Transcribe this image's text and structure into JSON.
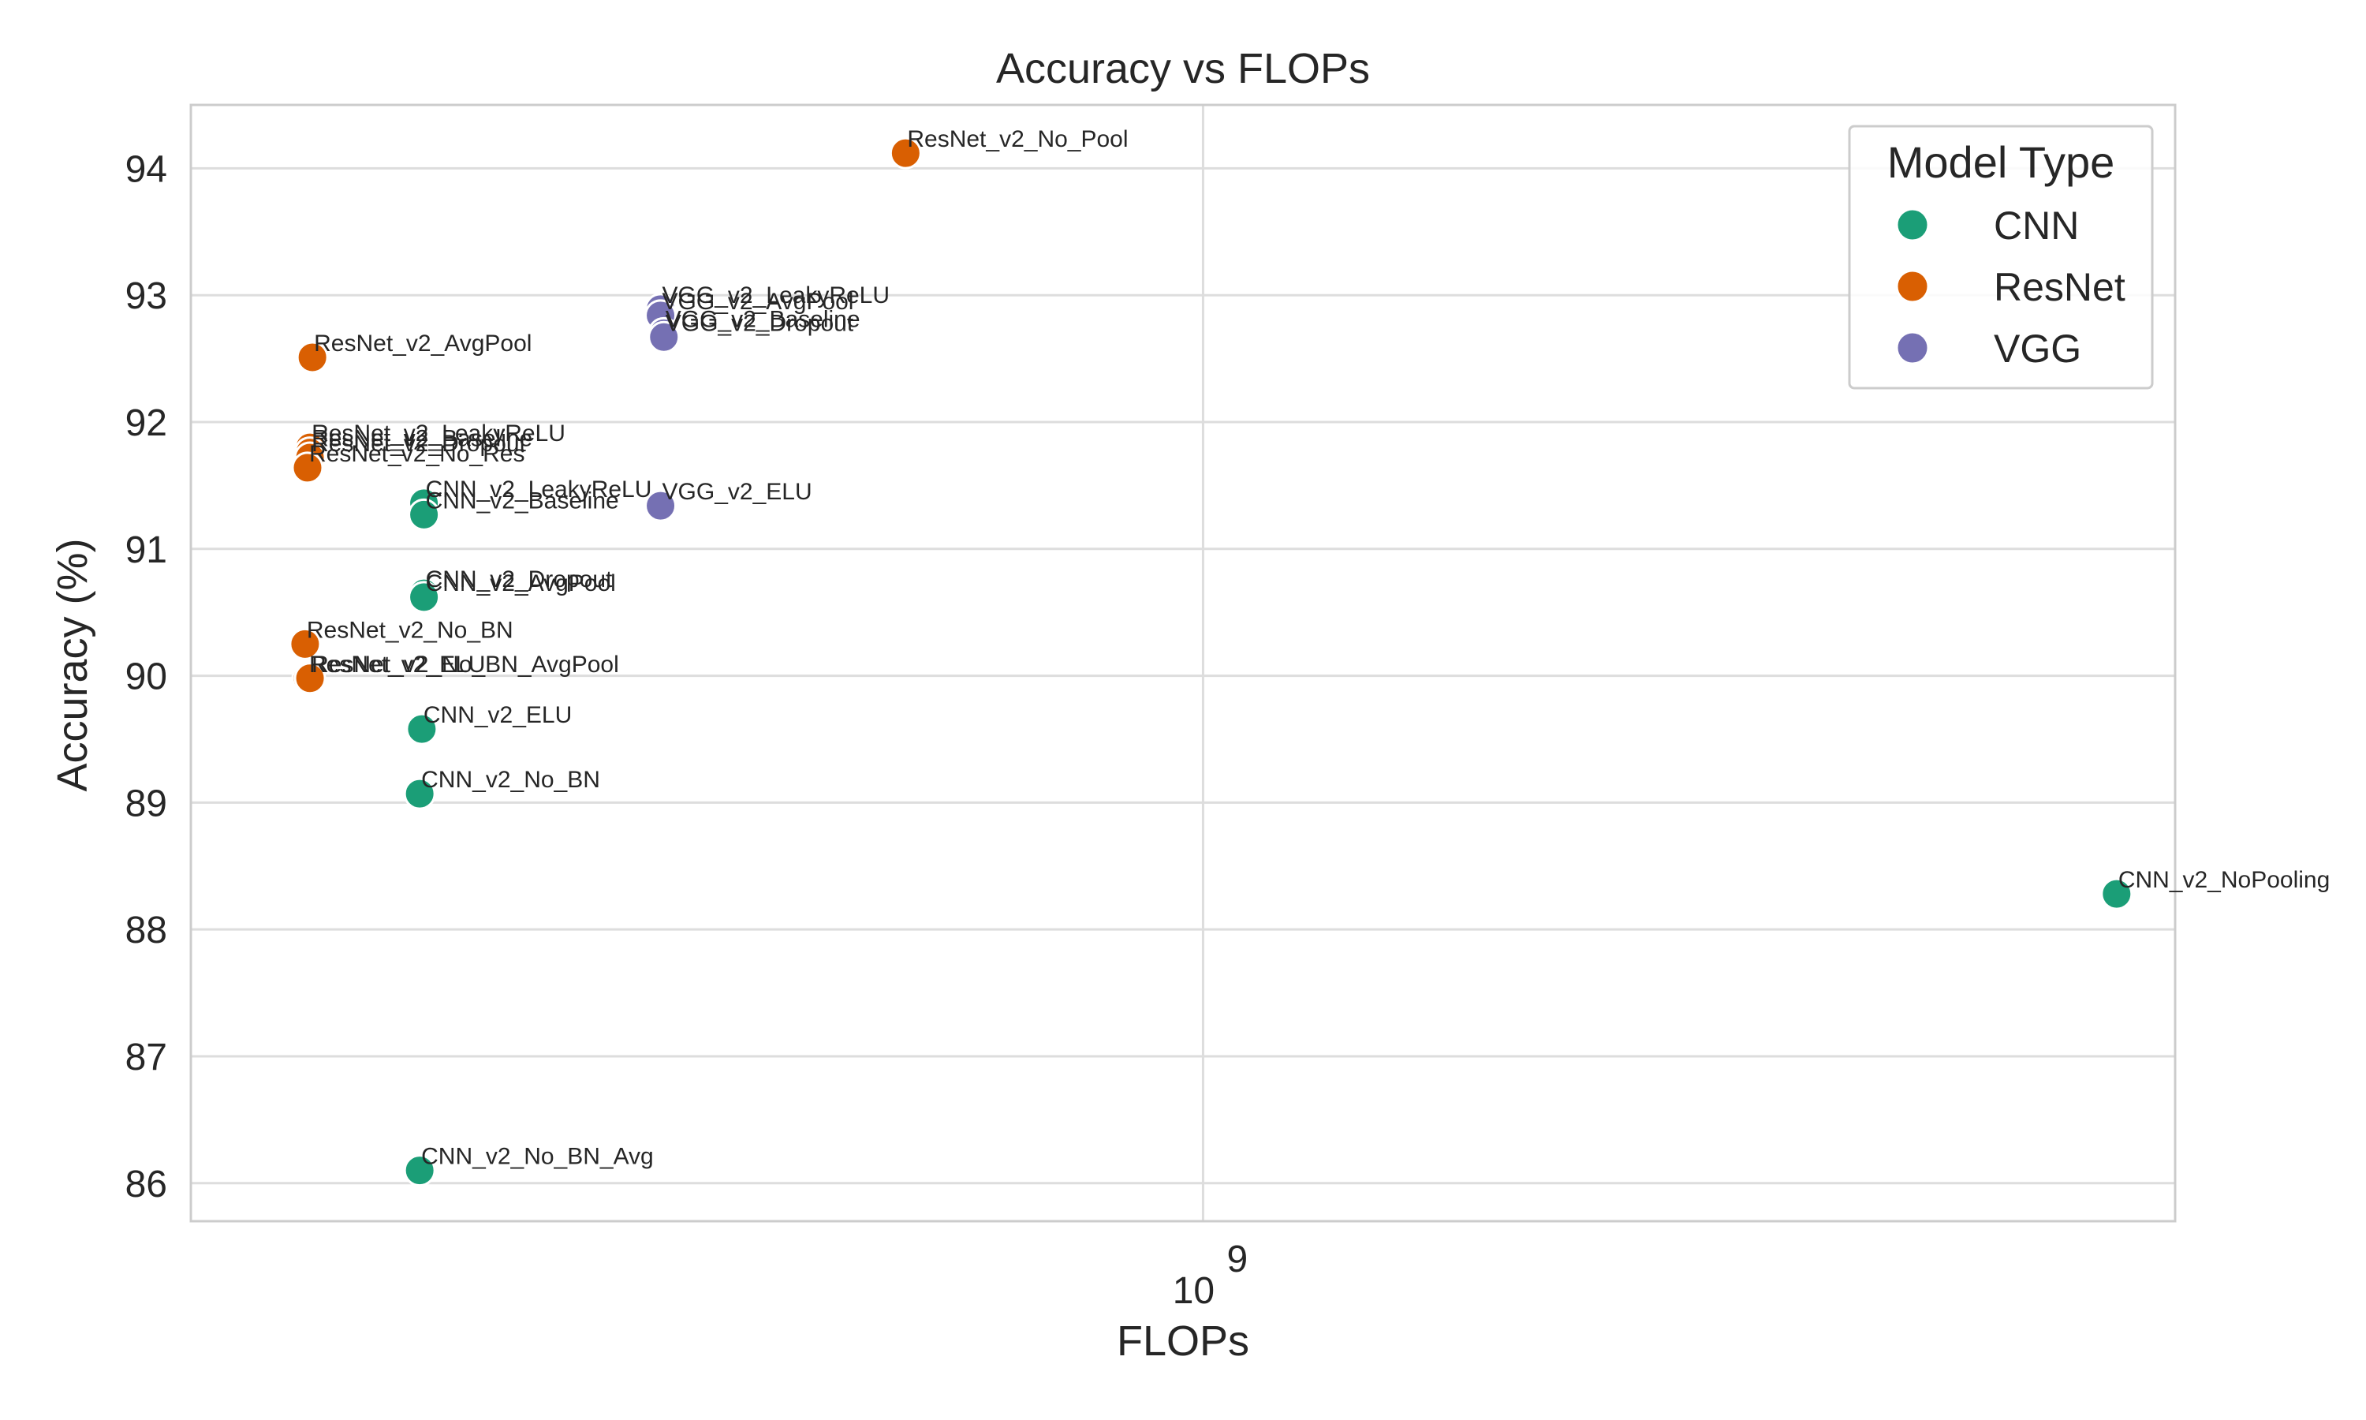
{
  "chart_data": {
    "type": "scatter",
    "title": "Accuracy vs FLOPs",
    "xlabel": "FLOPs",
    "ylabel": "Accuracy (%)",
    "x_scale": "log",
    "xlim": [
      330000000,
      2900000000
    ],
    "ylim": [
      85.7,
      94.5
    ],
    "x_ticks": [
      {
        "value": 1000000000,
        "base": "10",
        "exp": "9"
      }
    ],
    "y_ticks": [
      86,
      87,
      88,
      89,
      90,
      91,
      92,
      93,
      94
    ],
    "grid": true,
    "legend": {
      "title": "Model Type",
      "placement": "top-right",
      "entries": [
        {
          "name": "CNN",
          "color": "#1b9e77"
        },
        {
          "name": "ResNet",
          "color": "#d95f02"
        },
        {
          "name": "VGG",
          "color": "#7570b3"
        }
      ]
    },
    "points": [
      {
        "label": "ResNet_v2_No_Pool",
        "type": "ResNet",
        "x": 722000000,
        "y": 94.12
      },
      {
        "label": "ResNet_v2_AvgPool",
        "type": "ResNet",
        "x": 377000000,
        "y": 92.51
      },
      {
        "label": "ResNet_v2_LeakyReLU",
        "type": "ResNet",
        "x": 376000000,
        "y": 91.8
      },
      {
        "label": "ResNet_v2_Baseline",
        "type": "ResNet",
        "x": 376000000,
        "y": 91.76
      },
      {
        "label": "ResNet_v2_Dropout",
        "type": "ResNet",
        "x": 376000000,
        "y": 91.72
      },
      {
        "label": "ResNet_v2_No_Res",
        "type": "ResNet",
        "x": 375000000,
        "y": 91.64
      },
      {
        "label": "ResNet_v2_No_BN",
        "type": "ResNet",
        "x": 374000000,
        "y": 90.25
      },
      {
        "label": "ResNet_v2_ELU",
        "type": "ResNet",
        "x": 375000000,
        "y": 89.98
      },
      {
        "label": "ResNet_v2_No_BN_AvgPool",
        "type": "ResNet",
        "x": 376000000,
        "y": 89.98
      },
      {
        "label": "VGG_v2_LeakyReLU",
        "type": "VGG",
        "x": 552000000,
        "y": 92.89
      },
      {
        "label": "VGG_v2_AvgPool",
        "type": "VGG",
        "x": 552000000,
        "y": 92.84
      },
      {
        "label": "VGG_v2_Baseline",
        "type": "VGG",
        "x": 554000000,
        "y": 92.7
      },
      {
        "label": "VGG_v2_Dropout",
        "type": "VGG",
        "x": 554000000,
        "y": 92.67
      },
      {
        "label": "VGG_v2_ELU",
        "type": "VGG",
        "x": 552000000,
        "y": 91.34
      },
      {
        "label": "CNN_v2_LeakyReLU",
        "type": "CNN",
        "x": 426000000,
        "y": 91.36
      },
      {
        "label": "CNN_v2_Baseline",
        "type": "CNN",
        "x": 426000000,
        "y": 91.27
      },
      {
        "label": "CNN_v2_Dropout",
        "type": "CNN",
        "x": 426000000,
        "y": 90.65
      },
      {
        "label": "CNN_v2_AvgPool",
        "type": "CNN",
        "x": 426000000,
        "y": 90.62
      },
      {
        "label": "CNN_v2_ELU",
        "type": "CNN",
        "x": 425000000,
        "y": 89.58
      },
      {
        "label": "CNN_v2_No_BN",
        "type": "CNN",
        "x": 424000000,
        "y": 89.07
      },
      {
        "label": "CNN_v2_No_BN_Avg",
        "type": "CNN",
        "x": 424000000,
        "y": 86.1
      },
      {
        "label": "CNN_v2_NoPooling",
        "type": "CNN",
        "x": 2720000000,
        "y": 88.28
      }
    ]
  }
}
